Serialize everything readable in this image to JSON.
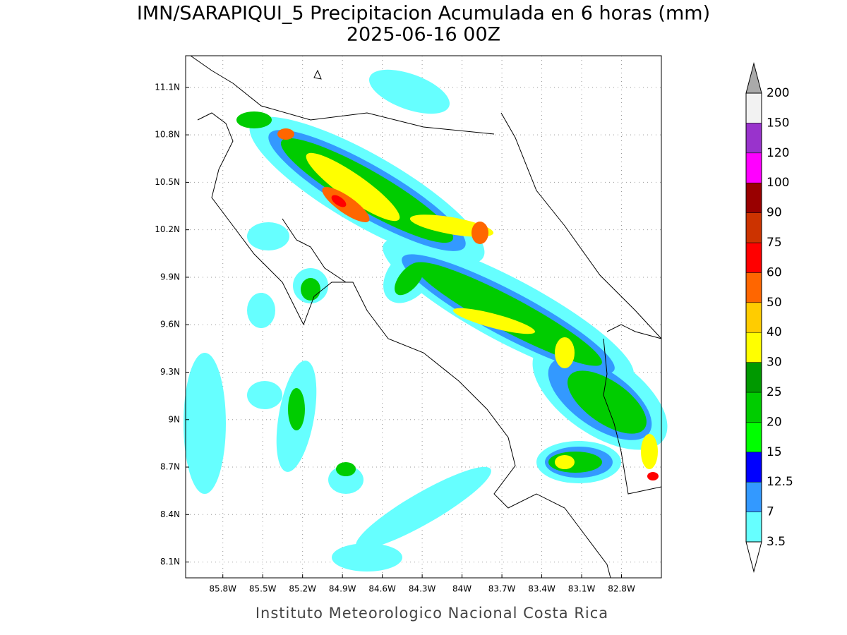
{
  "map": {
    "title": "IMN/SARAPIQUI_5 Precipitacion Acumulada en 6 horas (mm)",
    "subtitle": "2025-06-16 00Z",
    "footer": "Instituto Meteorologico Nacional Costa Rica",
    "xlim": [
      -86.08,
      -82.5
    ],
    "ylim": [
      8.0,
      11.3
    ],
    "xticks": [
      {
        "value": -85.8,
        "label": "85.8W"
      },
      {
        "value": -85.5,
        "label": "85.5W"
      },
      {
        "value": -85.2,
        "label": "85.2W"
      },
      {
        "value": -84.9,
        "label": "84.9W"
      },
      {
        "value": -84.6,
        "label": "84.6W"
      },
      {
        "value": -84.3,
        "label": "84.3W"
      },
      {
        "value": -84,
        "label": "84W"
      },
      {
        "value": -83.7,
        "label": "83.7W"
      },
      {
        "value": -83.4,
        "label": "83.4W"
      },
      {
        "value": -83.1,
        "label": "83.1W"
      },
      {
        "value": -82.8,
        "label": "82.8W"
      }
    ],
    "yticks": [
      {
        "value": 8.1,
        "label": "8.1N"
      },
      {
        "value": 8.4,
        "label": "8.4N"
      },
      {
        "value": 8.7,
        "label": "8.7N"
      },
      {
        "value": 9,
        "label": "9N"
      },
      {
        "value": 9.3,
        "label": "9.3N"
      },
      {
        "value": 9.6,
        "label": "9.6N"
      },
      {
        "value": 9.9,
        "label": "9.9N"
      },
      {
        "value": 10.2,
        "label": "10.2N"
      },
      {
        "value": 10.5,
        "label": "10.5N"
      },
      {
        "value": 10.8,
        "label": "10.8N"
      },
      {
        "value": 11.1,
        "label": "11.1N"
      }
    ]
  },
  "colorbar": {
    "levels": [
      3.5,
      7,
      12.5,
      15,
      20,
      25,
      30,
      40,
      50,
      60,
      75,
      90,
      100,
      120,
      150,
      200
    ],
    "colors": [
      "#ffffff",
      "#66ffff",
      "#3399ff",
      "#0000ff",
      "#00ff00",
      "#00cc00",
      "#009900",
      "#ffff00",
      "#ffcc00",
      "#ff6600",
      "#ff0000",
      "#cc3300",
      "#990000",
      "#ff00ff",
      "#9933cc",
      "#f2f2f2",
      "#aaaaaa"
    ]
  }
}
